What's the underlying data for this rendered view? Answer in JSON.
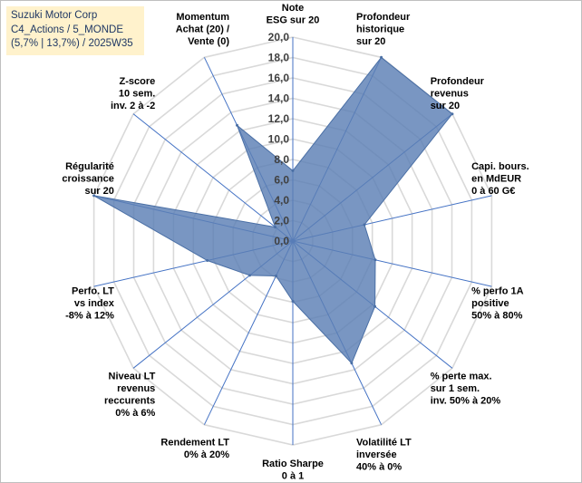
{
  "chart_data": {
    "type": "radar",
    "title_lines": [
      "Suzuki Motor Corp",
      "C4_Actions / 5_MONDE",
      "(5,7% | 13,7%) / 2025W35"
    ],
    "rmin": 0,
    "rmax": 20,
    "tick_step": 2,
    "tick_labels": [
      "0,0",
      "2,0",
      "4,0",
      "6,0",
      "8,0",
      "10,0",
      "12,0",
      "14,0",
      "16,0",
      "18,0",
      "20,0"
    ],
    "axes": [
      {
        "label": [
          "Note",
          "ESG sur 20"
        ],
        "value": 6.9
      },
      {
        "label": [
          "Profondeur",
          "historique",
          "sur 20"
        ],
        "value": 20.0
      },
      {
        "label": [
          "Profondeur",
          "revenus",
          "sur 20"
        ],
        "value": 20.0
      },
      {
        "label": [
          "Capi. bours.",
          "en MdEUR",
          "0 à 60 G€"
        ],
        "value": 7.2
      },
      {
        "label": [
          "% perfo 1A",
          "positive",
          "50% à 80%"
        ],
        "value": 8.3
      },
      {
        "label": [
          "% perte max.",
          "sur 1 sem.",
          "inv. 50% à 20%"
        ],
        "value": 10.3
      },
      {
        "label": [
          "Volatilité LT",
          "inversée",
          "40% à 0%"
        ],
        "value": 13.3
      },
      {
        "label": [
          "Ratio Sharpe",
          "0 à 1"
        ],
        "value": 5.9
      },
      {
        "label": [
          "Rendement LT",
          "0% à 20%"
        ],
        "value": 3.8
      },
      {
        "label": [
          "Niveau LT",
          "revenus",
          "reccurents",
          "0% à 6%"
        ],
        "value": 5.4
      },
      {
        "label": [
          "Perfo. LT",
          "vs index",
          "-8% à 12%"
        ],
        "value": 8.6
      },
      {
        "label": [
          "Régularité",
          "croissance",
          "sur 20"
        ],
        "value": 20.0
      },
      {
        "label": [
          "Z-score",
          "10 sem.",
          "inv. 2 à -2"
        ],
        "value": 2.2
      },
      {
        "label": [
          "Momentum",
          "Achat (20) /",
          "Vente (0)"
        ],
        "value": 12.6
      }
    ],
    "colors": {
      "fill": "#5b7fb5",
      "line": "#4a6fa5",
      "grid": "#d9d9d9",
      "spoke": "#4472c4"
    }
  }
}
